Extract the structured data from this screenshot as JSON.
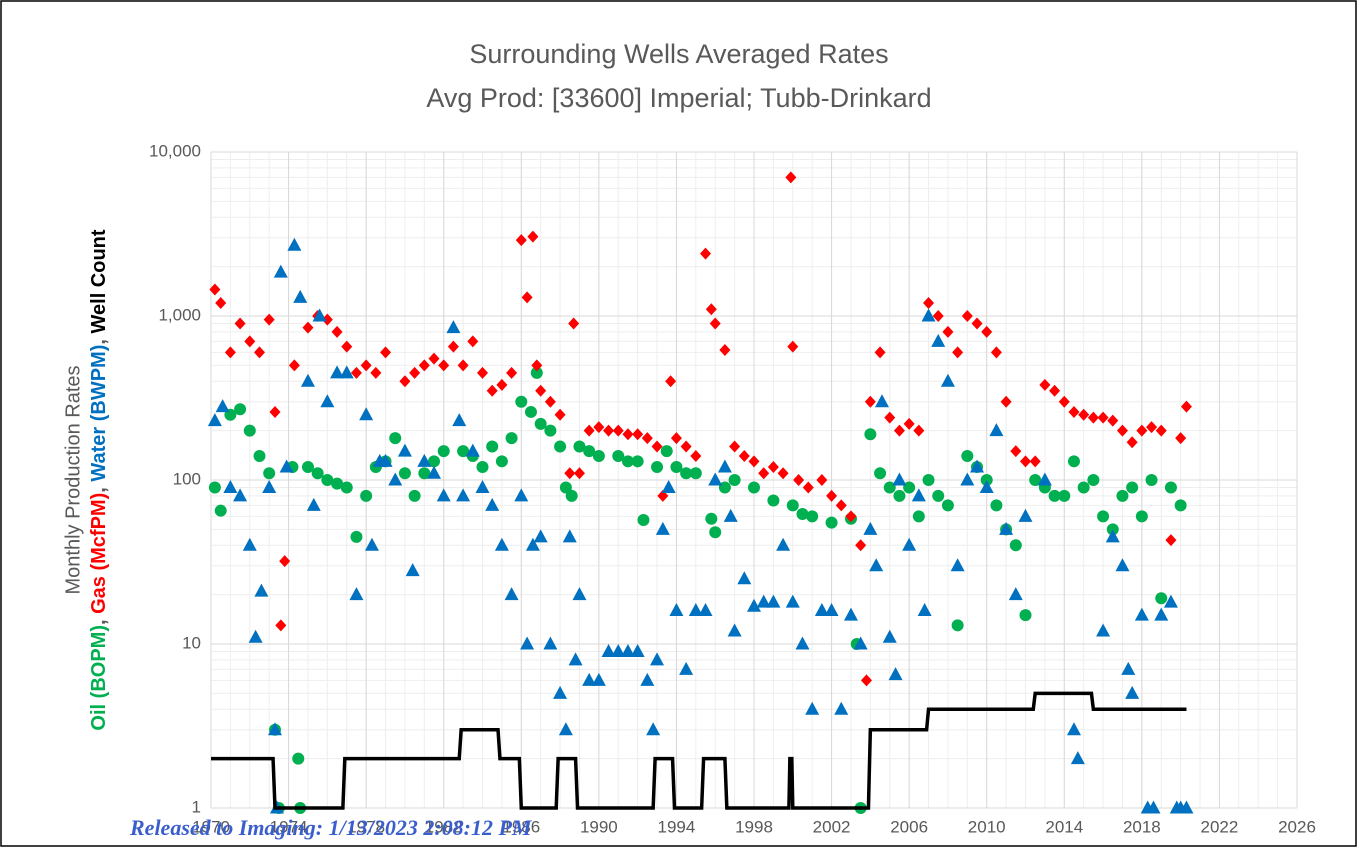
{
  "chart_data": {
    "type": "scatter",
    "title": "Surrounding Wells Averaged Rates",
    "subtitle": "Avg Prod: [33600] Imperial; Tubb-Drinkard",
    "y_label": "Monthly Production Rates",
    "y_label_parts": [
      {
        "text": "Oil (BOPM)",
        "color": "#00b050"
      },
      {
        "text": ", ",
        "color": "#595959"
      },
      {
        "text": "Gas (McfPM)",
        "color": "#ff0000"
      },
      {
        "text": ", ",
        "color": "#595959"
      },
      {
        "text": "Water (BWPM)",
        "color": "#0070c0"
      },
      {
        "text": ", ",
        "color": "#595959"
      },
      {
        "text": "Well Count",
        "color": "#000000"
      }
    ],
    "stamp": "Released to Imaging: 1/13/2023 2:08:12 PM",
    "log_y": true,
    "grid": true,
    "minor_grid": true,
    "xlim": [
      1970,
      2026
    ],
    "xticks": [
      1970,
      1974,
      1978,
      1982,
      1986,
      1990,
      1994,
      1998,
      2002,
      2006,
      2010,
      2014,
      2018,
      2022,
      2026
    ],
    "ylim": [
      1,
      10000
    ],
    "yticks": [
      1,
      10,
      100,
      {
        "value": 1000,
        "label": "1,000"
      },
      {
        "value": 10000,
        "label": "10,000"
      }
    ],
    "series": [
      {
        "name": "Oil (BOPM)",
        "color": "#00b050",
        "marker": "circle",
        "x": [
          1970.2,
          1970.5,
          1971,
          1971.5,
          1972,
          1972.5,
          1973,
          1973.3,
          1973.5,
          1974.5,
          1974.6,
          1974.2,
          1975,
          1975.5,
          1976,
          1976.5,
          1977,
          1977.5,
          1978,
          1978.5,
          1979,
          1979.5,
          1980,
          1980.5,
          1981,
          1981.5,
          1982,
          1983,
          1983.5,
          1984,
          1984.5,
          1985,
          1985.5,
          1986,
          1986.5,
          1986.8,
          1987,
          1987.5,
          1988,
          1988.3,
          1988.6,
          1989,
          1989.5,
          1990,
          1991,
          1991.5,
          1992,
          1992.3,
          1993,
          1993.5,
          1994,
          1994.5,
          1995,
          1995.8,
          1996,
          1996.5,
          1997,
          1998,
          1999,
          2000,
          2000.5,
          2001,
          2002,
          2003,
          2003.3,
          2003.5,
          2004,
          2004.5,
          2005,
          2005.5,
          2006,
          2006.5,
          2007,
          2007.5,
          2008,
          2008.5,
          2009,
          2009.5,
          2010,
          2010.5,
          2011,
          2011.5,
          2012,
          2012.5,
          2013,
          2013.5,
          2014,
          2014.5,
          2015,
          2015.5,
          2016,
          2016.5,
          2017,
          2017.5,
          2018,
          2018.5,
          2019,
          2019.5,
          2020
        ],
        "values": [
          90,
          65,
          250,
          270,
          200,
          140,
          110,
          3,
          1,
          2,
          1,
          120,
          120,
          110,
          100,
          95,
          90,
          45,
          80,
          120,
          130,
          180,
          110,
          80,
          110,
          130,
          150,
          150,
          140,
          120,
          160,
          130,
          180,
          300,
          260,
          450,
          220,
          200,
          160,
          90,
          80,
          160,
          150,
          140,
          140,
          130,
          130,
          57,
          120,
          150,
          120,
          110,
          110,
          58,
          48,
          90,
          100,
          90,
          75,
          70,
          62,
          60,
          55,
          58,
          10,
          1,
          190,
          110,
          90,
          80,
          90,
          60,
          100,
          80,
          70,
          13,
          140,
          120,
          100,
          70,
          50,
          40,
          15,
          100,
          90,
          80,
          80,
          130,
          90,
          100,
          60,
          50,
          80,
          90,
          60,
          100,
          19,
          90,
          70
        ]
      },
      {
        "name": "Gas (McfPM)",
        "color": "#ff0000",
        "marker": "diamond",
        "x": [
          1970.2,
          1970.5,
          1971,
          1971.5,
          1972,
          1972.5,
          1973,
          1973.3,
          1973.6,
          1973.8,
          1974.3,
          1975,
          1975.5,
          1976,
          1976.5,
          1977,
          1977.5,
          1978,
          1978.5,
          1979,
          1980,
          1980.5,
          1981,
          1981.5,
          1982,
          1982.5,
          1983,
          1983.5,
          1984,
          1984.5,
          1985,
          1985.5,
          1986,
          1986.3,
          1986.6,
          1986.8,
          1987,
          1987.5,
          1988,
          1988.5,
          1988.7,
          1989,
          1989.5,
          1990,
          1990.5,
          1991,
          1991.5,
          1992,
          1992.5,
          1993,
          1993.3,
          1993.7,
          1994,
          1994.5,
          1995,
          1995.5,
          1995.8,
          1996,
          1996.5,
          1997,
          1997.5,
          1998,
          1998.5,
          1999,
          1999.5,
          1999.9,
          2000,
          2000.3,
          2000.8,
          2001.5,
          2002,
          2002.5,
          2003,
          2003.5,
          2003.8,
          2004,
          2004.5,
          2005,
          2005.5,
          2006,
          2006.5,
          2007,
          2007.5,
          2008,
          2008.5,
          2009,
          2009.5,
          2010,
          2010.5,
          2011,
          2011.5,
          2012,
          2012.5,
          2013,
          2013.5,
          2014,
          2014.5,
          2015,
          2015.5,
          2016,
          2016.5,
          2017,
          2017.5,
          2018,
          2018.5,
          2019,
          2019.5,
          2020,
          2020.3
        ],
        "values": [
          1450,
          1200,
          600,
          900,
          700,
          600,
          950,
          260,
          13,
          32,
          500,
          850,
          1000,
          950,
          800,
          650,
          450,
          500,
          450,
          600,
          400,
          450,
          500,
          550,
          500,
          650,
          500,
          700,
          450,
          350,
          380,
          450,
          2900,
          1300,
          3050,
          500,
          350,
          300,
          250,
          110,
          900,
          110,
          200,
          210,
          200,
          200,
          190,
          190,
          180,
          160,
          80,
          400,
          180,
          160,
          140,
          2400,
          1100,
          900,
          620,
          160,
          140,
          130,
          110,
          120,
          110,
          7000,
          650,
          100,
          90,
          100,
          80,
          70,
          60,
          40,
          6,
          300,
          600,
          240,
          200,
          220,
          200,
          1200,
          1000,
          800,
          600,
          1000,
          900,
          800,
          600,
          300,
          150,
          130,
          130,
          380,
          350,
          300,
          260,
          250,
          240,
          240,
          230,
          200,
          170,
          200,
          210,
          200,
          43,
          180,
          280
        ]
      },
      {
        "name": "Water (BWPM)",
        "color": "#0070c0",
        "marker": "triangle",
        "x": [
          1970.2,
          1970.6,
          1971,
          1971.5,
          1972,
          1972.3,
          1972.6,
          1973,
          1973.3,
          1973.4,
          1973.6,
          1973.9,
          1974.3,
          1974.6,
          1975,
          1975.3,
          1975.6,
          1976,
          1976.5,
          1977,
          1977.5,
          1978,
          1978.3,
          1978.7,
          1979,
          1979.5,
          1980,
          1980.4,
          1981,
          1981.5,
          1982,
          1982.5,
          1982.8,
          1983,
          1983.5,
          1984,
          1984.5,
          1985,
          1985.5,
          1986,
          1986.3,
          1986.6,
          1987,
          1987.5,
          1988,
          1988.3,
          1988.5,
          1988.8,
          1989,
          1989.5,
          1990,
          1990.5,
          1991,
          1991.5,
          1992,
          1992.5,
          1992.8,
          1993,
          1993.3,
          1993.6,
          1994,
          1994.5,
          1995,
          1995.5,
          1996,
          1996.5,
          1996.8,
          1997,
          1997.5,
          1998,
          1998.5,
          1999,
          1999.5,
          2000,
          2000.5,
          2001,
          2001.5,
          2002,
          2002.5,
          2003,
          2003.5,
          2004,
          2004.3,
          2004.6,
          2005,
          2005.3,
          2005.5,
          2006,
          2006.5,
          2006.8,
          2007,
          2007.5,
          2008,
          2008.5,
          2009,
          2009.5,
          2010,
          2010.5,
          2011,
          2011.5,
          2012,
          2013,
          2014.5,
          2014.7,
          2016,
          2016.5,
          2017,
          2017.3,
          2017.5,
          2018,
          2018.3,
          2018.6,
          2019,
          2019.5,
          2019.8,
          2020,
          2020.3
        ],
        "values": [
          230,
          280,
          90,
          80,
          40,
          11,
          21,
          90,
          3,
          1,
          1850,
          120,
          2700,
          1300,
          400,
          70,
          1000,
          300,
          450,
          450,
          20,
          250,
          40,
          130,
          130,
          100,
          150,
          28,
          130,
          110,
          80,
          850,
          230,
          80,
          150,
          90,
          70,
          40,
          20,
          80,
          10,
          40,
          45,
          10,
          5,
          3,
          45,
          8,
          20,
          6,
          6,
          9,
          9,
          9,
          9,
          6,
          3,
          8,
          50,
          90,
          16,
          7,
          16,
          16,
          100,
          120,
          60,
          12,
          25,
          17,
          18,
          18,
          40,
          18,
          10,
          4,
          16,
          16,
          4,
          15,
          10,
          50,
          30,
          300,
          11,
          6.5,
          100,
          40,
          80,
          16,
          1000,
          700,
          400,
          30,
          100,
          120,
          90,
          200,
          50,
          20,
          60,
          100,
          3,
          2,
          12,
          45,
          30,
          7,
          5,
          15,
          1,
          1,
          15,
          18,
          1,
          1,
          1
        ]
      },
      {
        "name": "Well Count",
        "color": "#000000",
        "marker": "line",
        "x": [
          1970,
          1973.2,
          1973.3,
          1976.8,
          1976.9,
          1982.8,
          1982.9,
          1984.8,
          1984.9,
          1985.9,
          1986,
          1987.8,
          1987.9,
          1988.8,
          1988.9,
          1992.8,
          1992.9,
          1993.8,
          1993.9,
          1995.3,
          1995.4,
          1996.5,
          1996.6,
          1999.8,
          1999.85,
          1999.95,
          2000,
          2003.9,
          2004,
          2006.9,
          2007,
          2012.4,
          2012.5,
          2015.4,
          2015.5,
          2020.3
        ],
        "values": [
          2,
          2,
          1,
          1,
          2,
          2,
          3,
          3,
          2,
          2,
          1,
          1,
          2,
          2,
          1,
          1,
          2,
          2,
          1,
          1,
          2,
          2,
          1,
          1,
          2,
          2,
          1,
          1,
          3,
          3,
          4,
          4,
          5,
          5,
          4,
          4
        ]
      }
    ]
  }
}
